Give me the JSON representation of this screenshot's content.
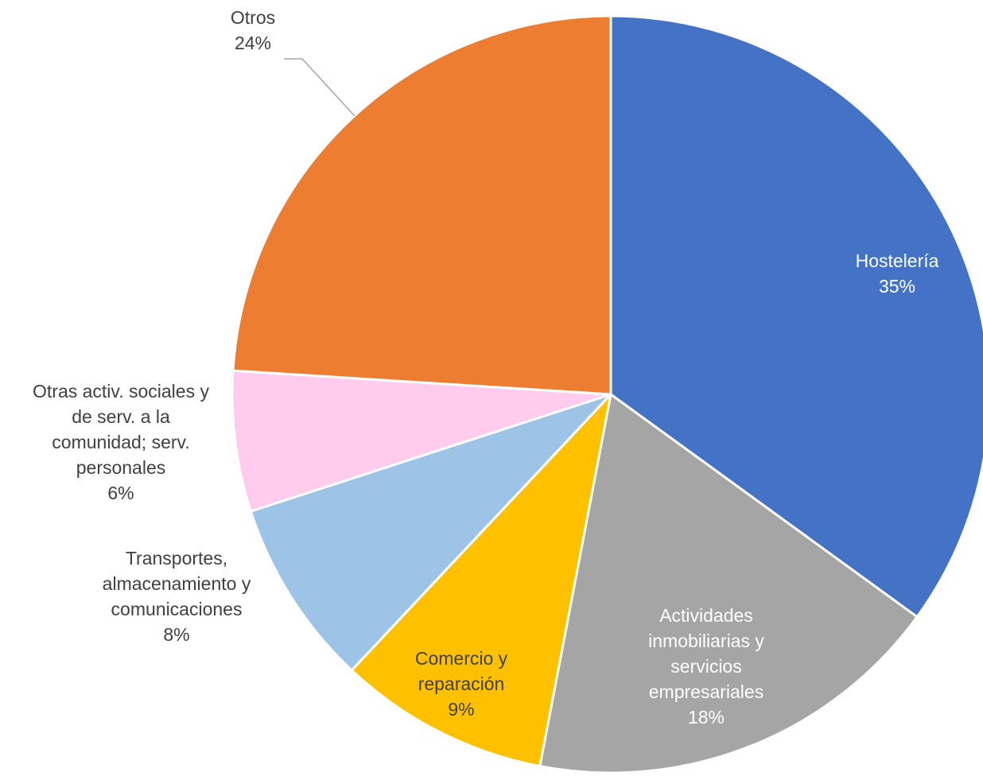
{
  "chart_data": {
    "type": "pie",
    "title": "",
    "start_angle_deg": 0,
    "direction": "clockwise",
    "slices": [
      {
        "label_lines": [
          "Hostelería"
        ],
        "label": "Hostelería",
        "value": 35,
        "value_label": "35%",
        "color": "#4472C4",
        "label_color": "#FFFFFF"
      },
      {
        "label_lines": [
          "Actividades",
          "inmobiliarias y",
          "servicios",
          "empresariales"
        ],
        "label": "Actividades inmobiliarias y servicios empresariales",
        "value": 18,
        "value_label": "18%",
        "color": "#A5A5A5",
        "label_color": "#FFFFFF"
      },
      {
        "label_lines": [
          "Comercio y",
          "reparación"
        ],
        "label": "Comercio y reparación",
        "value": 9,
        "value_label": "9%",
        "color": "#FFC000",
        "label_color": "#404040"
      },
      {
        "label_lines": [
          "Transportes,",
          "almacenamiento y",
          "comunicaciones"
        ],
        "label": "Transportes, almacenamiento y comunicaciones",
        "value": 8,
        "value_label": "8%",
        "color": "#9DC3E6",
        "label_color": "#404040"
      },
      {
        "label_lines": [
          "Otras activ. sociales y",
          "de serv. a la",
          "comunidad; serv.",
          "personales"
        ],
        "label": "Otras activ. sociales y de serv. a la comunidad; serv. personales",
        "value": 6,
        "value_label": "6%",
        "color": "#FFCCEE",
        "label_color": "#404040"
      },
      {
        "label_lines": [
          "Otros"
        ],
        "label": "Otros",
        "value": 24,
        "value_label": "24%",
        "color": "#ED7D31",
        "label_color": "#404040"
      }
    ]
  }
}
